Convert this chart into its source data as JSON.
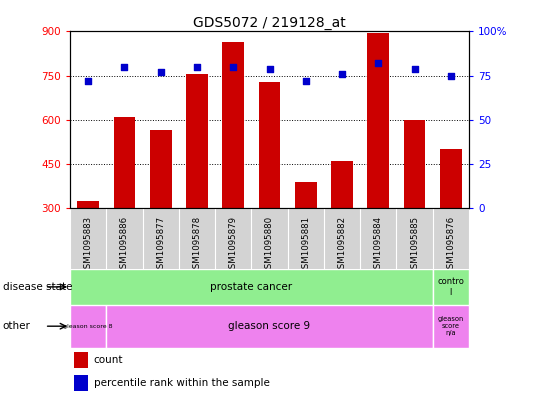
{
  "title": "GDS5072 / 219128_at",
  "samples": [
    "GSM1095883",
    "GSM1095886",
    "GSM1095877",
    "GSM1095878",
    "GSM1095879",
    "GSM1095880",
    "GSM1095881",
    "GSM1095882",
    "GSM1095884",
    "GSM1095885",
    "GSM1095876"
  ],
  "counts": [
    325,
    610,
    565,
    755,
    865,
    730,
    390,
    460,
    895,
    600,
    500
  ],
  "percentiles": [
    72,
    80,
    77,
    80,
    80,
    79,
    72,
    76,
    82,
    79,
    75
  ],
  "ylim_left": [
    300,
    900
  ],
  "ylim_right": [
    0,
    100
  ],
  "yticks_left": [
    300,
    450,
    600,
    750,
    900
  ],
  "yticks_right": [
    0,
    25,
    50,
    75,
    100
  ],
  "bar_color": "#cc0000",
  "dot_color": "#0000cc",
  "xticklabel_bg": "#d3d3d3",
  "disease_color": "#90ee90",
  "other_color": "#ee82ee",
  "legend_count_label": "count",
  "legend_pct_label": "percentile rank within the sample",
  "xlabel_disease": "disease state",
  "xlabel_other": "other"
}
